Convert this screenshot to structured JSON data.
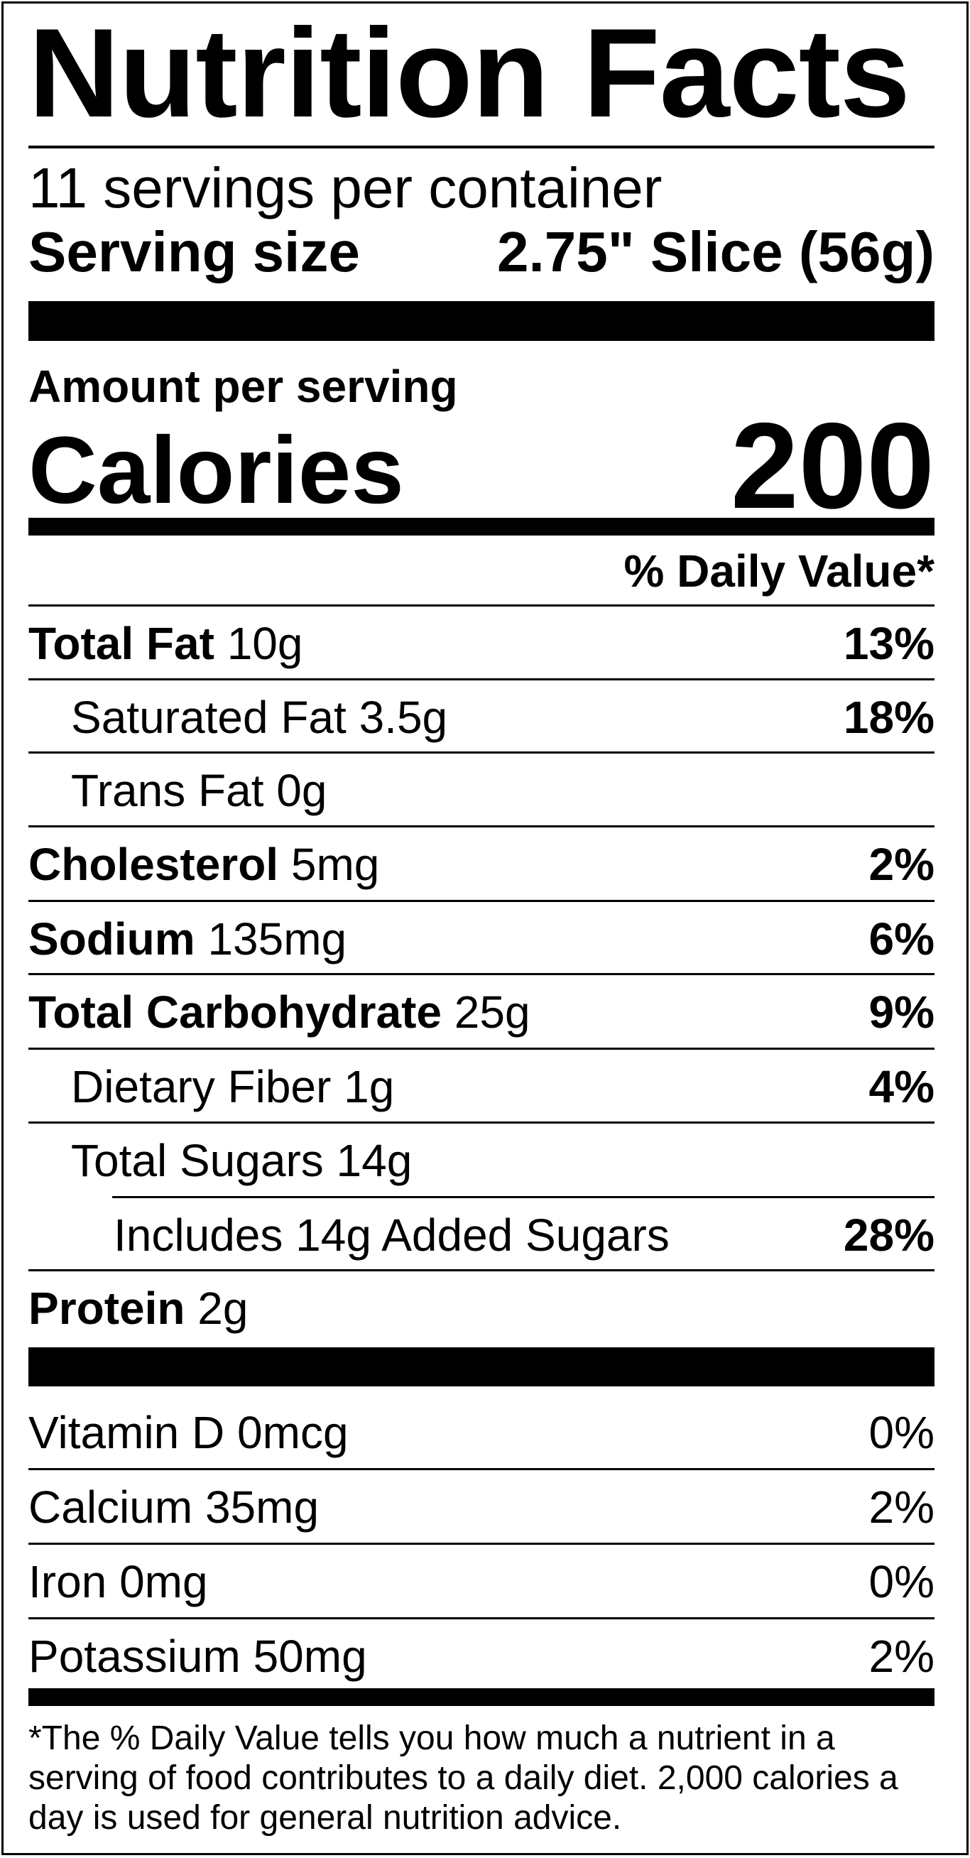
{
  "title": "Nutrition Facts",
  "servings_per_container": "11 servings per container",
  "serving_size": {
    "label": "Serving size",
    "value": "2.75\" Slice (56g)"
  },
  "amount_per_serving": "Amount per serving",
  "calories": {
    "label": "Calories",
    "value": "200"
  },
  "daily_value_header": "% Daily Value*",
  "nutrients": [
    {
      "name": "Total Fat",
      "amount": "10g",
      "dv": "13%"
    },
    {
      "name": "Saturated Fat",
      "amount": "3.5g",
      "dv": "18%"
    },
    {
      "name": "Trans Fat",
      "amount": "0g",
      "dv": ""
    },
    {
      "name": "Cholesterol",
      "amount": "5mg",
      "dv": "2%"
    },
    {
      "name": "Sodium",
      "amount": "135mg",
      "dv": "6%"
    },
    {
      "name": "Total Carbohydrate",
      "amount": "25g",
      "dv": "9%"
    },
    {
      "name": "Dietary Fiber",
      "amount": "1g",
      "dv": "4%"
    },
    {
      "name": "Total Sugars",
      "amount": "14g",
      "dv": ""
    },
    {
      "name": "Includes 14g Added Sugars",
      "amount": "",
      "dv": "28%"
    },
    {
      "name": "Protein",
      "amount": "2g",
      "dv": ""
    }
  ],
  "vitamins": [
    {
      "name": "Vitamin D",
      "amount": "0mcg",
      "dv": "0%"
    },
    {
      "name": "Calcium",
      "amount": "35mg",
      "dv": "2%"
    },
    {
      "name": "Iron",
      "amount": "0mg",
      "dv": "0%"
    },
    {
      "name": "Potassium",
      "amount": "50mg",
      "dv": "2%"
    }
  ],
  "footnote_lines": [
    "*The % Daily Value tells you how much a nutrient in a",
    "serving of food contributes to a daily diet. 2,000 calories a",
    "day is used for general nutrition advice."
  ]
}
